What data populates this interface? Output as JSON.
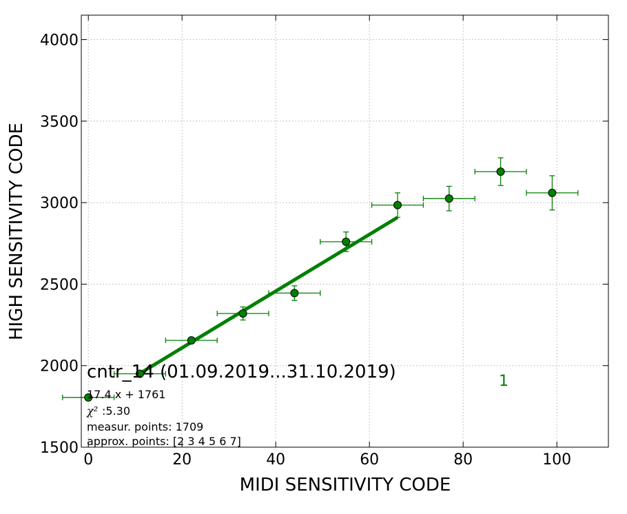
{
  "chart_data": {
    "type": "scatter",
    "xlabel": "MIDI SENSITIVITY CODE",
    "ylabel": "HIGH SENSITIVITY CODE",
    "xlim": [
      -1.5,
      111
    ],
    "ylim": [
      1500,
      4150
    ],
    "xticks": [
      0,
      20,
      40,
      60,
      80,
      100
    ],
    "yticks": [
      1500,
      2000,
      2500,
      3000,
      3500,
      4000
    ],
    "grid": true,
    "color": "#008000",
    "series": [
      {
        "name": "",
        "points": [
          {
            "x": 0,
            "y": 1805,
            "xerr": 5.5,
            "yerr": 0
          },
          {
            "x": 11,
            "y": 1950,
            "xerr": 5.5,
            "yerr": 0
          },
          {
            "x": 22,
            "y": 2155,
            "xerr": 5.5,
            "yerr": 18
          },
          {
            "x": 33,
            "y": 2320,
            "xerr": 5.5,
            "yerr": 40
          },
          {
            "x": 44,
            "y": 2445,
            "xerr": 5.5,
            "yerr": 45
          },
          {
            "x": 55,
            "y": 2760,
            "xerr": 5.5,
            "yerr": 60
          },
          {
            "x": 66,
            "y": 2985,
            "xerr": 5.5,
            "yerr": 75
          },
          {
            "x": 77,
            "y": 3025,
            "xerr": 5.5,
            "yerr": 75
          },
          {
            "x": 88,
            "y": 3190,
            "xerr": 5.5,
            "yerr": 85
          },
          {
            "x": 99,
            "y": 3060,
            "xerr": 5.5,
            "yerr": 105
          }
        ]
      }
    ],
    "fit": {
      "slope": 17.4,
      "intercept": 1761,
      "x_range": [
        11,
        66
      ]
    },
    "title": "cntr_14 (01.09.2019...31.10.2019)",
    "annotations": {
      "equation": "17.4 x + 1761",
      "chi_symbol": "χ²",
      "chi_value": ":5.30",
      "measur_points": "measur. points: 1709",
      "approx_points": "approx. points: [2 3 4 5 6 7]",
      "label_1": "1"
    }
  }
}
